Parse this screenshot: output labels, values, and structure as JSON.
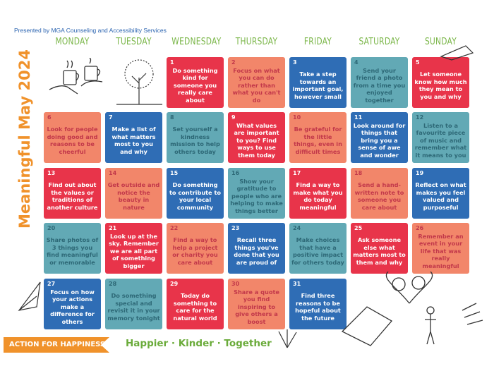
{
  "presenter": "Presented by MGA Counseling and Accessibility Services",
  "title": "Meaningful May 2024",
  "weekdays": [
    "MONDAY",
    "TUESDAY",
    "WEDNESDAY",
    "THURSDAY",
    "FRIDAY",
    "SATURDAY",
    "SUNDAY"
  ],
  "colors": {
    "red": "#e8344a",
    "salmon": "#f2866a",
    "blue": "#2f6db5",
    "teal": "#62a9b5",
    "accent_orange": "#f0922b",
    "accent_green": "#7ab648"
  },
  "color_cycle": [
    "red",
    "salmon",
    "blue",
    "teal"
  ],
  "first_weekday_index": 2,
  "days": [
    {
      "n": "1",
      "text": "Do something kind for someone you really care about"
    },
    {
      "n": "2",
      "text": "Focus on what you can do rather than what you can't do"
    },
    {
      "n": "3",
      "text": "Take a step towards an important goal, however small"
    },
    {
      "n": "4",
      "text": "Send your friend a photo from a time you enjoyed together"
    },
    {
      "n": "5",
      "text": "Let someone know how much they mean to you and why"
    },
    {
      "n": "6",
      "text": "Look for people doing good and reasons to be cheerful"
    },
    {
      "n": "7",
      "text": "Make a list of what matters most to you and why"
    },
    {
      "n": "8",
      "text": "Set yourself a kindness mission to help others today"
    },
    {
      "n": "9",
      "text": "What values are important to you? Find ways to use them today"
    },
    {
      "n": "10",
      "text": "Be grateful for the little things, even in difficult times"
    },
    {
      "n": "11",
      "text": "Look around for things that bring you a sense of awe and wonder"
    },
    {
      "n": "12",
      "text": "Listen to a favourite piece of music and remember what it means to you"
    },
    {
      "n": "13",
      "text": "Find out about the values or traditions of another culture"
    },
    {
      "n": "14",
      "text": "Get outside and notice the beauty in nature"
    },
    {
      "n": "15",
      "text": "Do something to contribute to your local community"
    },
    {
      "n": "16",
      "text": "Show your gratitude to people who are helping to make things better"
    },
    {
      "n": "17",
      "text": "Find a way to make what you do today meaningful"
    },
    {
      "n": "18",
      "text": "Send a hand-written note to someone you care about"
    },
    {
      "n": "19",
      "text": "Reflect on what makes you feel valued and purposeful"
    },
    {
      "n": "20",
      "text": "Share photos of 3 things you find meaningful or memorable"
    },
    {
      "n": "21",
      "text": "Look up at the sky. Remember we are all part of something bigger"
    },
    {
      "n": "22",
      "text": "Find a way to help a project or charity you care about"
    },
    {
      "n": "23",
      "text": "Recall three things you've done that you are proud of"
    },
    {
      "n": "24",
      "text": "Make choices that have a positive impact for others today"
    },
    {
      "n": "25",
      "text": "Ask someone else what matters most to them and why"
    },
    {
      "n": "26",
      "text": "Remember an event in your life that was really meaningful"
    },
    {
      "n": "27",
      "text": "Focus on how your actions make a difference for others"
    },
    {
      "n": "28",
      "text": "Do something special and revisit it in your memory tonight"
    },
    {
      "n": "29",
      "text": "Today do something to care for the natural world"
    },
    {
      "n": "30",
      "text": "Share a quote you find inspiring to give others a boost"
    },
    {
      "n": "31",
      "text": "Find three reasons to be hopeful about the future"
    }
  ],
  "footer": {
    "brand": "ACTION FOR HAPPINESS",
    "tagline": "Happier · Kinder · Together"
  }
}
